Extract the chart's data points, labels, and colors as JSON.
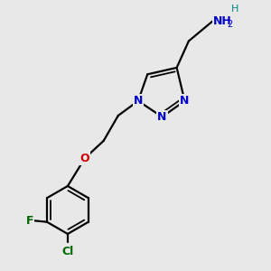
{
  "background_color": "#e8e8e8",
  "bond_color": "#000000",
  "atom_colors": {
    "N": "#0000cc",
    "O": "#cc0000",
    "F": "#006600",
    "Cl": "#006600",
    "C": "#000000",
    "H_teal": "#008888"
  },
  "figsize": [
    3.0,
    3.0
  ],
  "dpi": 100,
  "lw": 1.6,
  "font_size": 9
}
